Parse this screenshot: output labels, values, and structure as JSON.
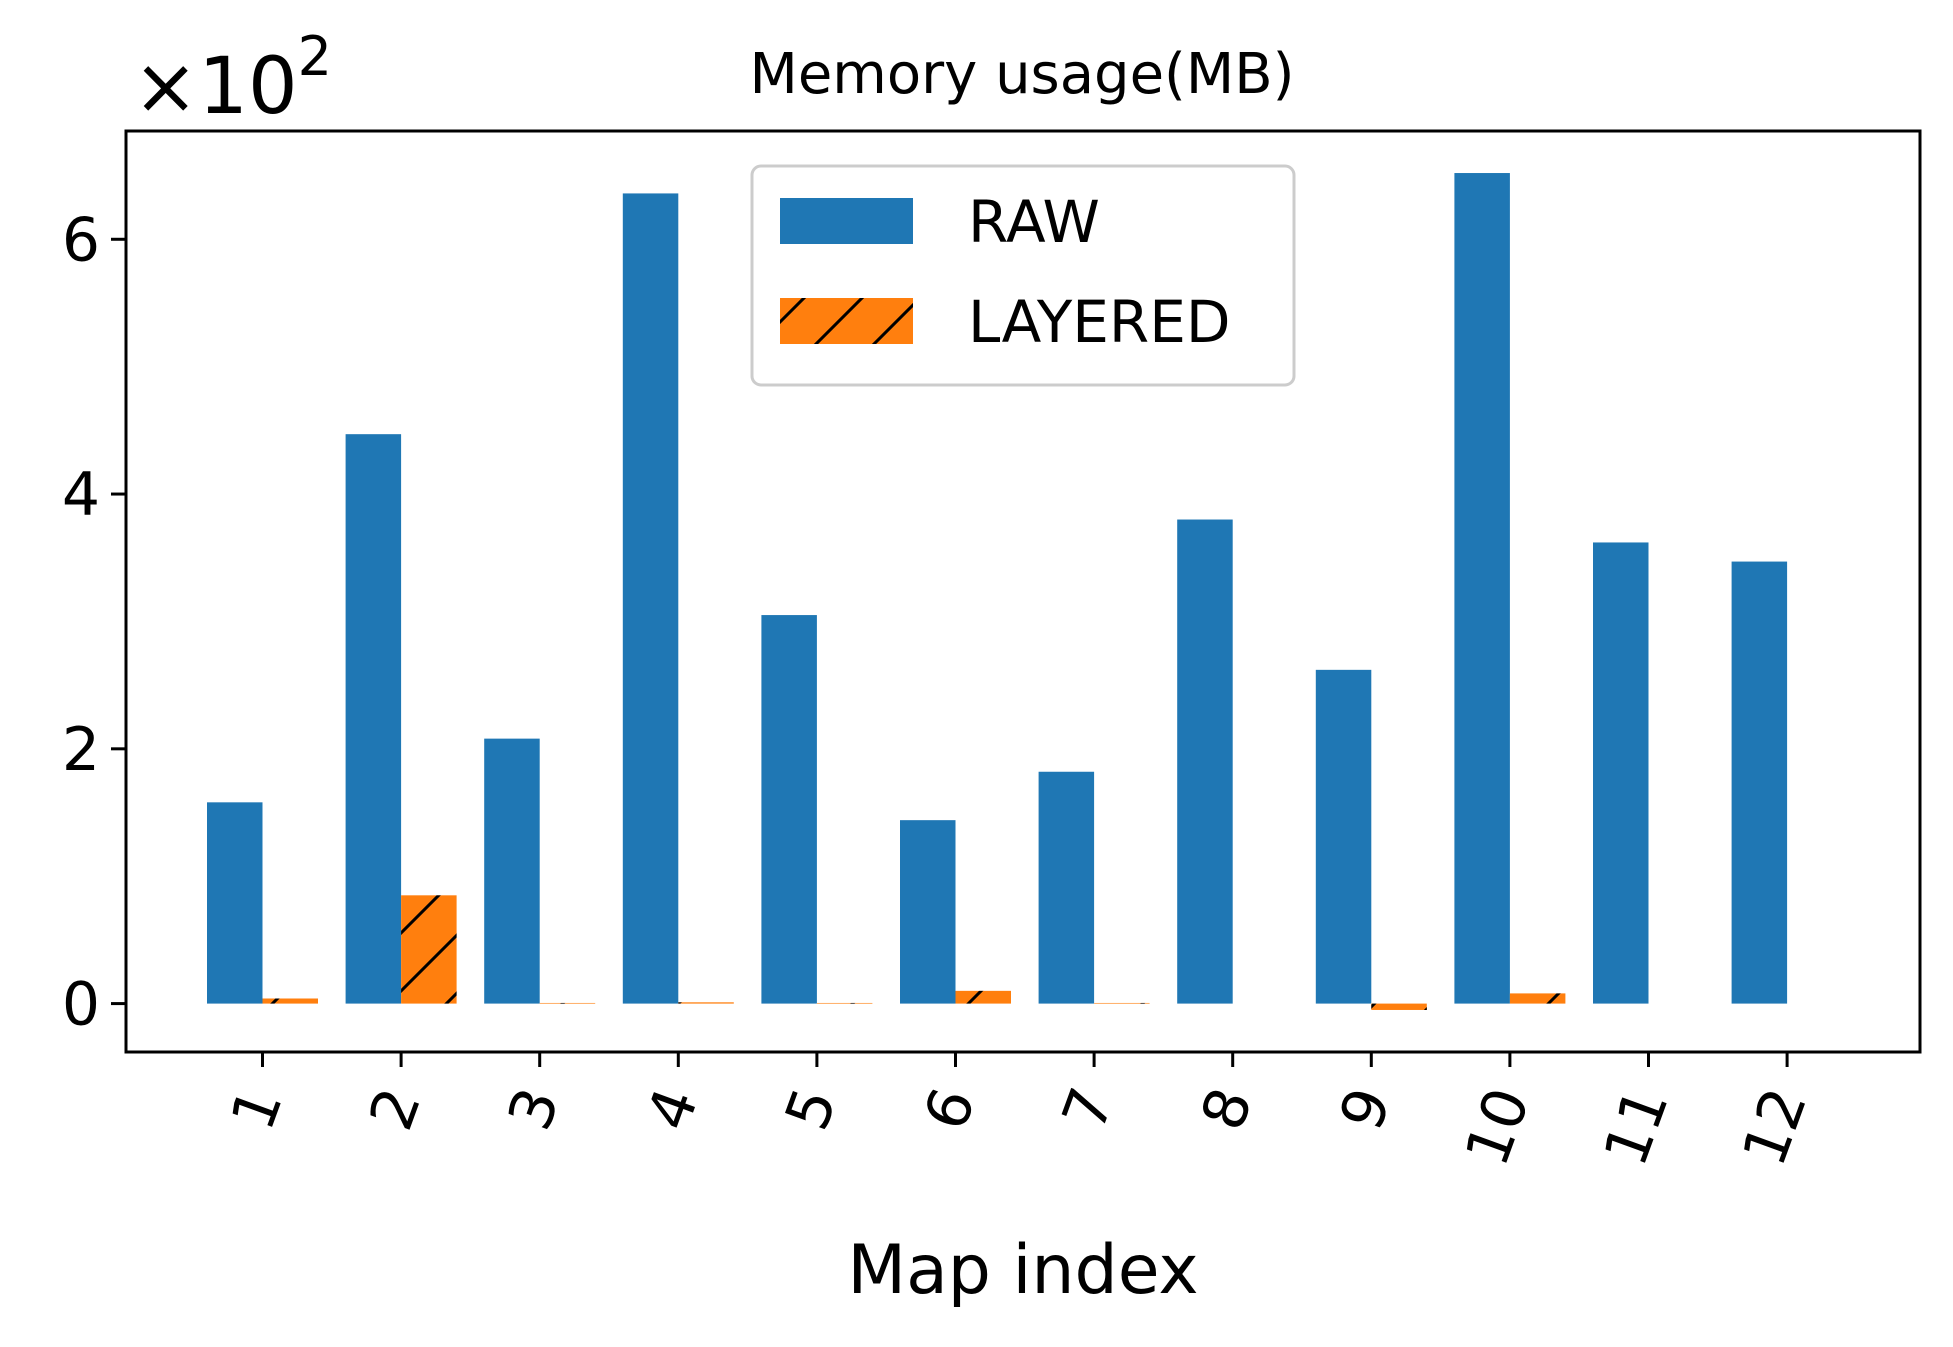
{
  "chart_data": {
    "type": "bar",
    "title": "Memory usage(MB)",
    "xlabel": "Map index",
    "ylabel": "",
    "scale_label": "×10",
    "scale_exponent": "2",
    "categories": [
      "1",
      "2",
      "3",
      "4",
      "5",
      "6",
      "7",
      "8",
      "9",
      "10",
      "11",
      "12"
    ],
    "series": [
      {
        "name": "RAW",
        "color": "#1f77b4",
        "hatch": "none",
        "values": [
          158,
          447,
          208,
          636,
          305,
          144,
          182,
          380,
          262,
          652,
          362,
          347
        ]
      },
      {
        "name": "LAYERED",
        "color": "#ff7f0e",
        "hatch": "diagonal",
        "values": [
          4,
          85,
          0.5,
          1,
          0.5,
          10,
          0.5,
          0,
          -5,
          8,
          0,
          0
        ]
      }
    ],
    "ylim": [
      -38,
      685
    ],
    "yticks": [
      0,
      200,
      400,
      600
    ],
    "ytick_labels": [
      "0",
      "2",
      "4",
      "6"
    ],
    "grid": false,
    "legend_position": "upper-center"
  }
}
